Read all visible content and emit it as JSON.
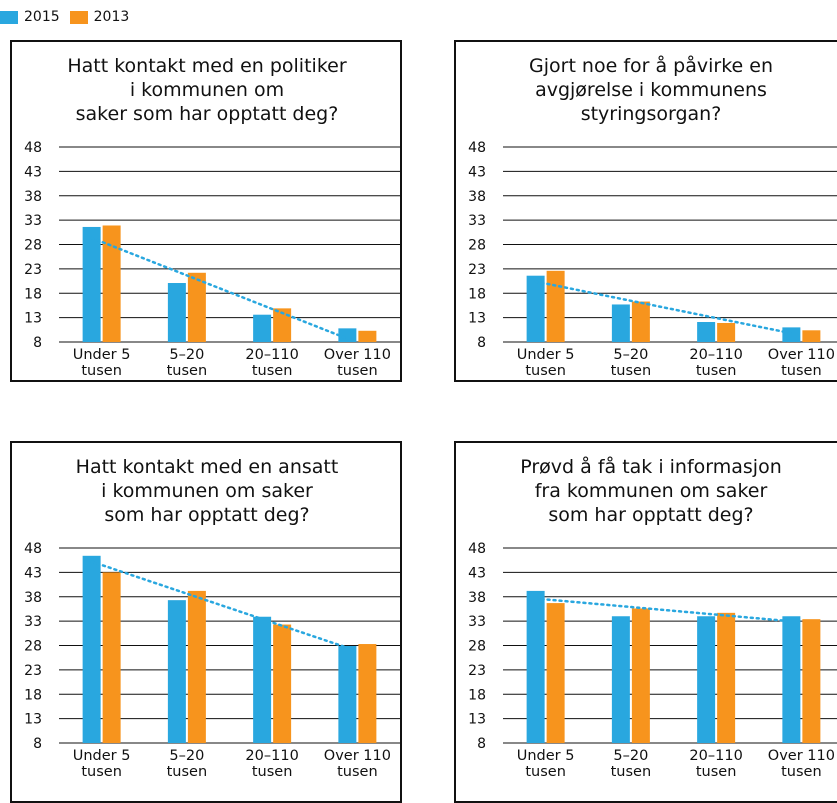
{
  "legend": {
    "items": [
      {
        "label": "2015",
        "color": "#29a7df"
      },
      {
        "label": "2013",
        "color": "#f7941d"
      }
    ]
  },
  "chart_data": [
    {
      "type": "bar",
      "title": "Hatt kontakt med en politiker\ni kommunen om\nsaker som har opptatt deg?",
      "categories": [
        "Under 5\ntusen",
        "5–20\ntusen",
        "20–110\ntusen",
        "Over 110\ntusen"
      ],
      "series": [
        {
          "name": "2015",
          "values": [
            31.6,
            20.1,
            13.6,
            10.8
          ]
        },
        {
          "name": "2013",
          "values": [
            31.9,
            22.2,
            14.9,
            10.3
          ]
        }
      ],
      "trendline": {
        "series": "2015",
        "style": "dotted",
        "color": "#29a7df"
      },
      "yticks": [
        8,
        13,
        18,
        23,
        28,
        33,
        38,
        43,
        48
      ],
      "ylim": [
        8,
        48
      ],
      "grid": true
    },
    {
      "type": "bar",
      "title": "Gjort noe for å påvirke en\navgjørelse i kommunens\nstyringsorgan?",
      "categories": [
        "Under 5\ntusen",
        "5–20\ntusen",
        "20–110\ntusen",
        "Over 110\ntusen"
      ],
      "series": [
        {
          "name": "2015",
          "values": [
            21.6,
            15.7,
            12.1,
            11.0
          ]
        },
        {
          "name": "2013",
          "values": [
            22.6,
            16.3,
            11.9,
            10.4
          ]
        }
      ],
      "trendline": {
        "series": "2015",
        "style": "dotted",
        "color": "#29a7df"
      },
      "yticks": [
        8,
        13,
        18,
        23,
        28,
        33,
        38,
        43,
        48
      ],
      "ylim": [
        8,
        48
      ],
      "grid": true
    },
    {
      "type": "bar",
      "title": "Hatt kontakt med en ansatt\ni kommunen om saker\nsom har opptatt deg?",
      "categories": [
        "Under 5\ntusen",
        "5–20\ntusen",
        "20–110\ntusen",
        "Over 110\ntusen"
      ],
      "series": [
        {
          "name": "2015",
          "values": [
            46.4,
            37.3,
            33.9,
            27.9
          ]
        },
        {
          "name": "2013",
          "values": [
            43.0,
            39.2,
            32.3,
            28.3
          ]
        }
      ],
      "trendline": {
        "series": "2015",
        "style": "dotted",
        "color": "#29a7df"
      },
      "yticks": [
        8,
        13,
        18,
        23,
        28,
        33,
        38,
        43,
        48
      ],
      "ylim": [
        8,
        48
      ],
      "grid": true
    },
    {
      "type": "bar",
      "title": "Prøvd å få tak i informasjon\nfra kommunen om saker\nsom har opptatt deg?",
      "categories": [
        "Under 5\ntusen",
        "5–20\ntusen",
        "20–110\ntusen",
        "Over 110\ntusen"
      ],
      "series": [
        {
          "name": "2015",
          "values": [
            39.2,
            34.0,
            34.0,
            34.0
          ]
        },
        {
          "name": "2013",
          "values": [
            36.7,
            35.6,
            34.7,
            33.4
          ]
        }
      ],
      "trendline": {
        "series": "2015",
        "style": "dotted",
        "color": "#29a7df"
      },
      "yticks": [
        8,
        13,
        18,
        23,
        28,
        33,
        38,
        43,
        48
      ],
      "ylim": [
        8,
        48
      ],
      "grid": true
    }
  ]
}
